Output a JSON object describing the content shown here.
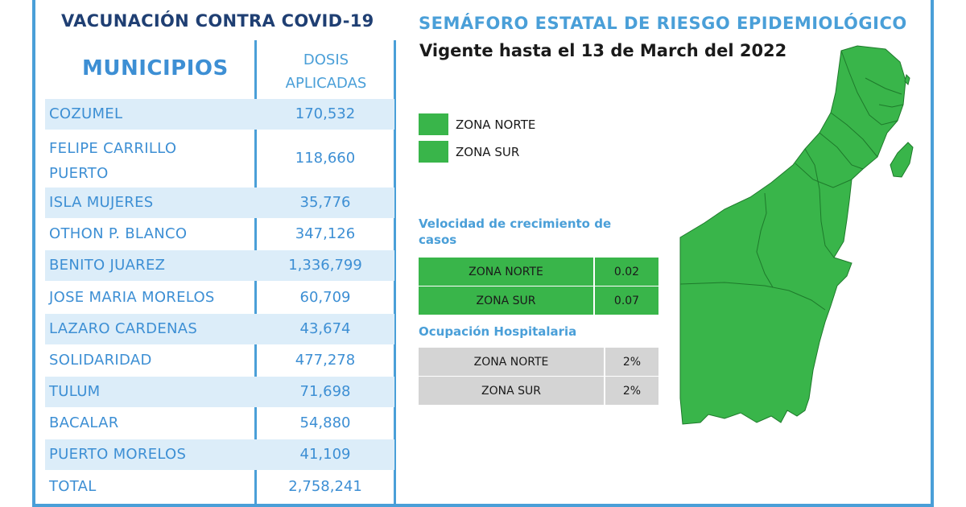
{
  "left": {
    "title": "VACUNACIÓN CONTRA COVID-19",
    "col_municipios": "MUNICIPIOS",
    "col_dosis_1": "DOSIS",
    "col_dosis_2": "APLICADAS",
    "rows": [
      {
        "name": "COZUMEL",
        "value": "170,532"
      },
      {
        "name": "FELIPE CARRILLO",
        "name2": "PUERTO",
        "value": "118,660"
      },
      {
        "name": "ISLA MUJERES",
        "value": "35,776"
      },
      {
        "name": "OTHON P. BLANCO",
        "value": "347,126"
      },
      {
        "name": "BENITO JUAREZ",
        "value": "1,336,799"
      },
      {
        "name": "JOSE MARIA MORELOS",
        "value": "60,709"
      },
      {
        "name": "LAZARO CARDENAS",
        "value": "43,674"
      },
      {
        "name": "SOLIDARIDAD",
        "value": "477,278"
      },
      {
        "name": "TULUM",
        "value": "71,698"
      },
      {
        "name": "BACALAR",
        "value": "54,880"
      },
      {
        "name": "PUERTO MORELOS",
        "value": "41,109"
      },
      {
        "name": "TOTAL",
        "value": "2,758,241"
      }
    ]
  },
  "right": {
    "title": "SEMÁFORO ESTATAL DE RIESGO EPIDEMIOLÓGICO",
    "vigente": "Vigente hasta el 13 de March del 2022",
    "legend": [
      {
        "label": "ZONA NORTE",
        "color": "#39b54a"
      },
      {
        "label": "ZONA SUR",
        "color": "#39b54a"
      }
    ],
    "velocidad_title": "Velocidad de crecimiento de casos",
    "velocidad": [
      {
        "zone": "ZONA NORTE",
        "value": "0.02"
      },
      {
        "zone": "ZONA SUR",
        "value": "0.07"
      }
    ],
    "ocupacion_title": "Ocupación Hospitalaria",
    "ocupacion": [
      {
        "zone": "ZONA NORTE",
        "value": "2%"
      },
      {
        "zone": "ZONA SUR",
        "value": "2%"
      }
    ]
  },
  "colors": {
    "accent_blue": "#4a9fd8",
    "title_navy": "#1f3f73",
    "zone_green": "#39b54a",
    "row_shade": "#dcedf9",
    "gray_cell": "#d4d4d4"
  }
}
